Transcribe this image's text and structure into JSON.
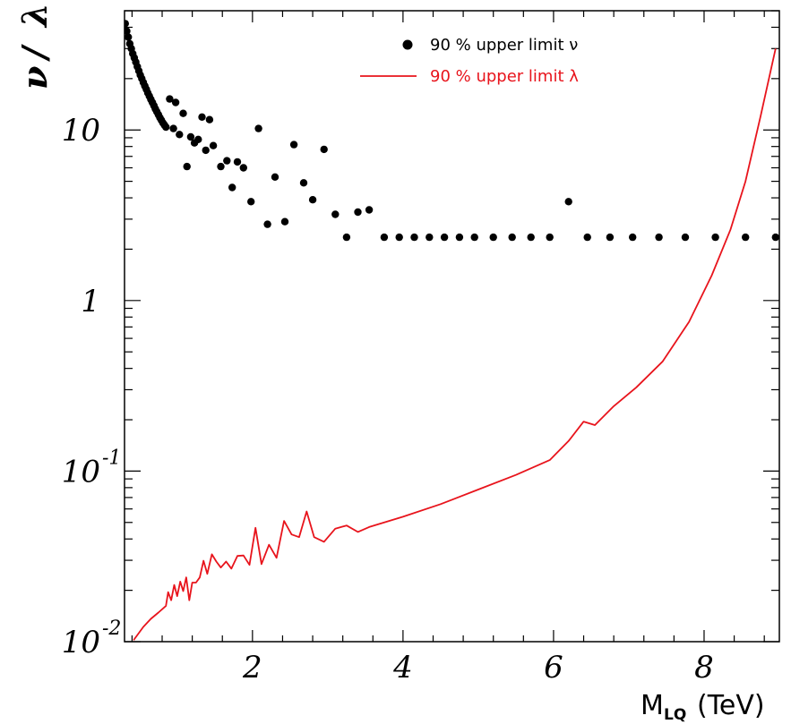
{
  "chart_data": {
    "type": "scatter",
    "ylabel_parts": [
      "ν",
      "/",
      "λ"
    ],
    "xlabel": {
      "main": "M",
      "sub": "LQ",
      "unit": "(TeV)"
    },
    "x_scale": "linear",
    "y_scale": "log",
    "xlim": [
      0.3,
      9.0
    ],
    "ylim": [
      0.01,
      50
    ],
    "x_ticks": [
      {
        "value": 2,
        "label": "2"
      },
      {
        "value": 4,
        "label": "4"
      },
      {
        "value": 6,
        "label": "6"
      },
      {
        "value": 8,
        "label": "8"
      }
    ],
    "y_ticks": [
      {
        "value": 0.01,
        "base": "10",
        "exp": "-2"
      },
      {
        "value": 0.1,
        "base": "10",
        "exp": "-1"
      },
      {
        "value": 1,
        "base": "1",
        "exp": ""
      },
      {
        "value": 10,
        "base": "10",
        "exp": ""
      }
    ],
    "legend": {
      "position": "top-right"
    },
    "series": [
      {
        "name": "90 % upper limit ν",
        "kind": "points",
        "color": "#000000",
        "points": [
          [
            0.31,
            42
          ],
          [
            0.33,
            38
          ],
          [
            0.35,
            35
          ],
          [
            0.37,
            32
          ],
          [
            0.39,
            30
          ],
          [
            0.41,
            28
          ],
          [
            0.43,
            26.5
          ],
          [
            0.45,
            25
          ],
          [
            0.47,
            23.5
          ],
          [
            0.49,
            22.2
          ],
          [
            0.51,
            21
          ],
          [
            0.53,
            20
          ],
          [
            0.55,
            19
          ],
          [
            0.57,
            18.1
          ],
          [
            0.59,
            17.3
          ],
          [
            0.61,
            16.5
          ],
          [
            0.63,
            15.8
          ],
          [
            0.65,
            15.1
          ],
          [
            0.67,
            14.5
          ],
          [
            0.69,
            13.9
          ],
          [
            0.71,
            13.3
          ],
          [
            0.73,
            12.8
          ],
          [
            0.75,
            12.3
          ],
          [
            0.77,
            11.8
          ],
          [
            0.79,
            11.4
          ],
          [
            0.81,
            11.0
          ],
          [
            0.83,
            10.7
          ],
          [
            0.85,
            10.4
          ],
          [
            0.9,
            15.2
          ],
          [
            0.95,
            10.2
          ],
          [
            0.98,
            14.5
          ],
          [
            1.03,
            9.4
          ],
          [
            1.08,
            12.5
          ],
          [
            1.13,
            6.1
          ],
          [
            1.18,
            9.1
          ],
          [
            1.23,
            8.4
          ],
          [
            1.28,
            8.8
          ],
          [
            1.33,
            11.9
          ],
          [
            1.38,
            7.6
          ],
          [
            1.43,
            11.5
          ],
          [
            1.48,
            8.1
          ],
          [
            1.58,
            6.1
          ],
          [
            1.66,
            6.6
          ],
          [
            1.73,
            4.6
          ],
          [
            1.8,
            6.5
          ],
          [
            1.88,
            6.0
          ],
          [
            1.98,
            3.8
          ],
          [
            2.08,
            10.2
          ],
          [
            2.2,
            2.8
          ],
          [
            2.3,
            5.3
          ],
          [
            2.43,
            2.9
          ],
          [
            2.55,
            8.2
          ],
          [
            2.68,
            4.9
          ],
          [
            2.8,
            3.9
          ],
          [
            2.95,
            7.7
          ],
          [
            3.1,
            3.2
          ],
          [
            3.25,
            2.35
          ],
          [
            3.4,
            3.3
          ],
          [
            3.55,
            3.4
          ],
          [
            3.75,
            2.35
          ],
          [
            3.95,
            2.35
          ],
          [
            4.15,
            2.35
          ],
          [
            4.35,
            2.35
          ],
          [
            4.55,
            2.35
          ],
          [
            4.75,
            2.35
          ],
          [
            4.95,
            2.35
          ],
          [
            5.2,
            2.35
          ],
          [
            5.45,
            2.35
          ],
          [
            5.7,
            2.35
          ],
          [
            5.95,
            2.35
          ],
          [
            6.2,
            3.8
          ],
          [
            6.45,
            2.35
          ],
          [
            6.75,
            2.35
          ],
          [
            7.05,
            2.35
          ],
          [
            7.4,
            2.35
          ],
          [
            7.75,
            2.35
          ],
          [
            8.15,
            2.35
          ],
          [
            8.55,
            2.35
          ],
          [
            8.95,
            2.35
          ]
        ]
      },
      {
        "name": "90 % upper limit λ",
        "kind": "line",
        "color": "#e8141c",
        "points": [
          [
            0.42,
            0.0102
          ],
          [
            0.55,
            0.0122
          ],
          [
            0.65,
            0.0136
          ],
          [
            0.75,
            0.0148
          ],
          [
            0.85,
            0.0162
          ],
          [
            0.88,
            0.0195
          ],
          [
            0.92,
            0.0175
          ],
          [
            0.96,
            0.0215
          ],
          [
            1.0,
            0.0185
          ],
          [
            1.04,
            0.0225
          ],
          [
            1.08,
            0.0198
          ],
          [
            1.12,
            0.0238
          ],
          [
            1.16,
            0.0175
          ],
          [
            1.2,
            0.0222
          ],
          [
            1.25,
            0.0222
          ],
          [
            1.3,
            0.0238
          ],
          [
            1.35,
            0.0298
          ],
          [
            1.4,
            0.025
          ],
          [
            1.46,
            0.0325
          ],
          [
            1.52,
            0.0295
          ],
          [
            1.58,
            0.0272
          ],
          [
            1.65,
            0.0295
          ],
          [
            1.72,
            0.0268
          ],
          [
            1.8,
            0.0318
          ],
          [
            1.88,
            0.032
          ],
          [
            1.96,
            0.0282
          ],
          [
            2.04,
            0.0465
          ],
          [
            2.12,
            0.0285
          ],
          [
            2.22,
            0.037
          ],
          [
            2.32,
            0.031
          ],
          [
            2.42,
            0.051
          ],
          [
            2.52,
            0.0425
          ],
          [
            2.62,
            0.041
          ],
          [
            2.72,
            0.058
          ],
          [
            2.82,
            0.041
          ],
          [
            2.95,
            0.0385
          ],
          [
            3.1,
            0.046
          ],
          [
            3.25,
            0.048
          ],
          [
            3.4,
            0.044
          ],
          [
            3.55,
            0.047
          ],
          [
            4.0,
            0.054
          ],
          [
            4.5,
            0.064
          ],
          [
            5.0,
            0.078
          ],
          [
            5.5,
            0.095
          ],
          [
            5.95,
            0.116
          ],
          [
            6.2,
            0.15
          ],
          [
            6.4,
            0.195
          ],
          [
            6.55,
            0.186
          ],
          [
            6.8,
            0.24
          ],
          [
            7.1,
            0.31
          ],
          [
            7.45,
            0.44
          ],
          [
            7.8,
            0.75
          ],
          [
            8.1,
            1.4
          ],
          [
            8.35,
            2.6
          ],
          [
            8.55,
            5.0
          ],
          [
            8.75,
            12.0
          ],
          [
            8.95,
            30.0
          ]
        ]
      }
    ]
  }
}
